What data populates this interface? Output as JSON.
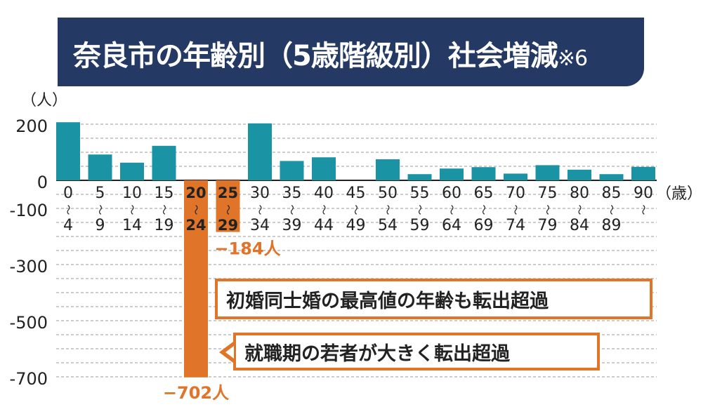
{
  "title_main": "奈良市の年齢別（5歳階級別）社会増減",
  "title_note": "※6",
  "chart_data": {
    "type": "bar",
    "title": "奈良市の年齢別（5歳階級別）社会増減",
    "ylabel": "（人）",
    "xlabel": "（歳）",
    "ylim": [
      -700,
      200
    ],
    "yticks": [
      "200",
      "0",
      "-100",
      "-300",
      "-500",
      "-700"
    ],
    "grid": true,
    "categories": [
      "0～4",
      "5～9",
      "10～14",
      "15～19",
      "20～24",
      "25～29",
      "30～34",
      "35～39",
      "40～44",
      "45～49",
      "50～54",
      "55～59",
      "60～64",
      "65～69",
      "70～74",
      "75～79",
      "80～84",
      "85～89",
      "90～"
    ],
    "cat_top": [
      "0",
      "5",
      "10",
      "15",
      "20",
      "25",
      "30",
      "35",
      "40",
      "45",
      "50",
      "55",
      "60",
      "65",
      "70",
      "75",
      "80",
      "85",
      "90"
    ],
    "cat_bottom": [
      "4",
      "9",
      "14",
      "19",
      "24",
      "29",
      "34",
      "39",
      "44",
      "49",
      "54",
      "59",
      "64",
      "69",
      "74",
      "79",
      "84",
      "89",
      ""
    ],
    "tilde": "～",
    "values": [
      207,
      92,
      63,
      123,
      -702,
      -184,
      203,
      69,
      82,
      0,
      75,
      22,
      42,
      47,
      24,
      54,
      38,
      22,
      48
    ],
    "colors": {
      "positive": "#1a93a5",
      "negative": "#e07429",
      "label": "#e07429",
      "grid": "#999999"
    },
    "data_labels": {
      "20～24": "−702人",
      "25～29": "−184人"
    },
    "annotations": [
      "初婚同士婚の最高値の年齢も転出超過",
      "就職期の若者が大きく転出超過"
    ]
  }
}
